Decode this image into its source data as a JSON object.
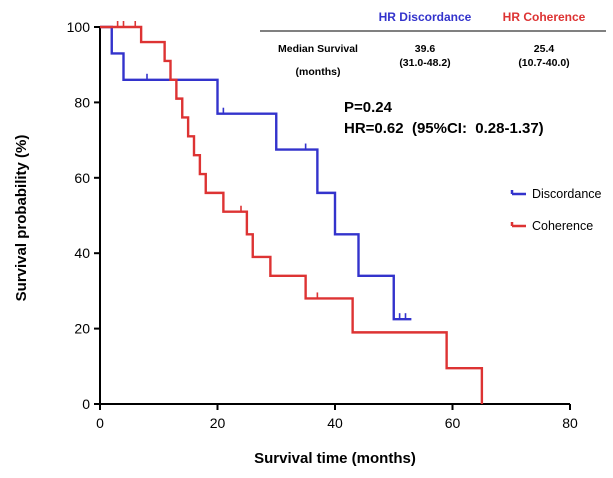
{
  "colors": {
    "discordance": "#3333cc",
    "coherence": "#dd3333",
    "axis": "#000000"
  },
  "chart_data": {
    "type": "line",
    "subtype": "kaplan-meier step",
    "xlabel": "Survival time (months)",
    "ylabel": "Survival probability (%)",
    "xlim": [
      0,
      80
    ],
    "ylim": [
      0,
      100
    ],
    "xticks": [
      0,
      20,
      40,
      60,
      80
    ],
    "yticks": [
      0,
      20,
      40,
      60,
      80,
      100
    ],
    "grid": false,
    "legend_position": "right",
    "series": [
      {
        "name": "Discordance",
        "color": "#3333cc",
        "x": [
          0,
          2,
          4,
          20,
          30,
          37,
          40,
          44,
          50,
          53
        ],
        "y": [
          100,
          93,
          86,
          77,
          67.5,
          56,
          45,
          34,
          22.5,
          22.5
        ],
        "censored": [
          [
            8,
            86
          ],
          [
            21,
            77
          ],
          [
            35,
            67.5
          ],
          [
            51,
            22.5
          ],
          [
            52,
            22.5
          ]
        ]
      },
      {
        "name": "Coherence",
        "color": "#dd3333",
        "x": [
          0,
          7,
          11,
          12,
          13,
          14,
          15,
          16,
          17,
          18,
          21,
          25,
          26,
          29,
          35,
          43,
          59,
          65
        ],
        "y": [
          100,
          96,
          91,
          86,
          81,
          76,
          71,
          66,
          61,
          56,
          51,
          45,
          39,
          34,
          28,
          19,
          9.5,
          0
        ],
        "censored": [
          [
            3,
            100
          ],
          [
            4,
            100
          ],
          [
            6,
            100
          ],
          [
            24,
            51
          ],
          [
            37,
            28
          ]
        ]
      }
    ],
    "annotations": {
      "p_value": "P=0.24",
      "hr": "HR=0.62  (95%CI:  0.28-1.37)"
    },
    "summary_table": {
      "col_discordance": "HR Discordance",
      "col_coherence": "HR Coherence",
      "row_label_line1": "Median Survival",
      "row_label_line2": "(months)",
      "discordance_median": "39.6",
      "discordance_ci": "(31.0-48.2)",
      "coherence_median": "25.4",
      "coherence_ci": "(10.7-40.0)"
    }
  }
}
